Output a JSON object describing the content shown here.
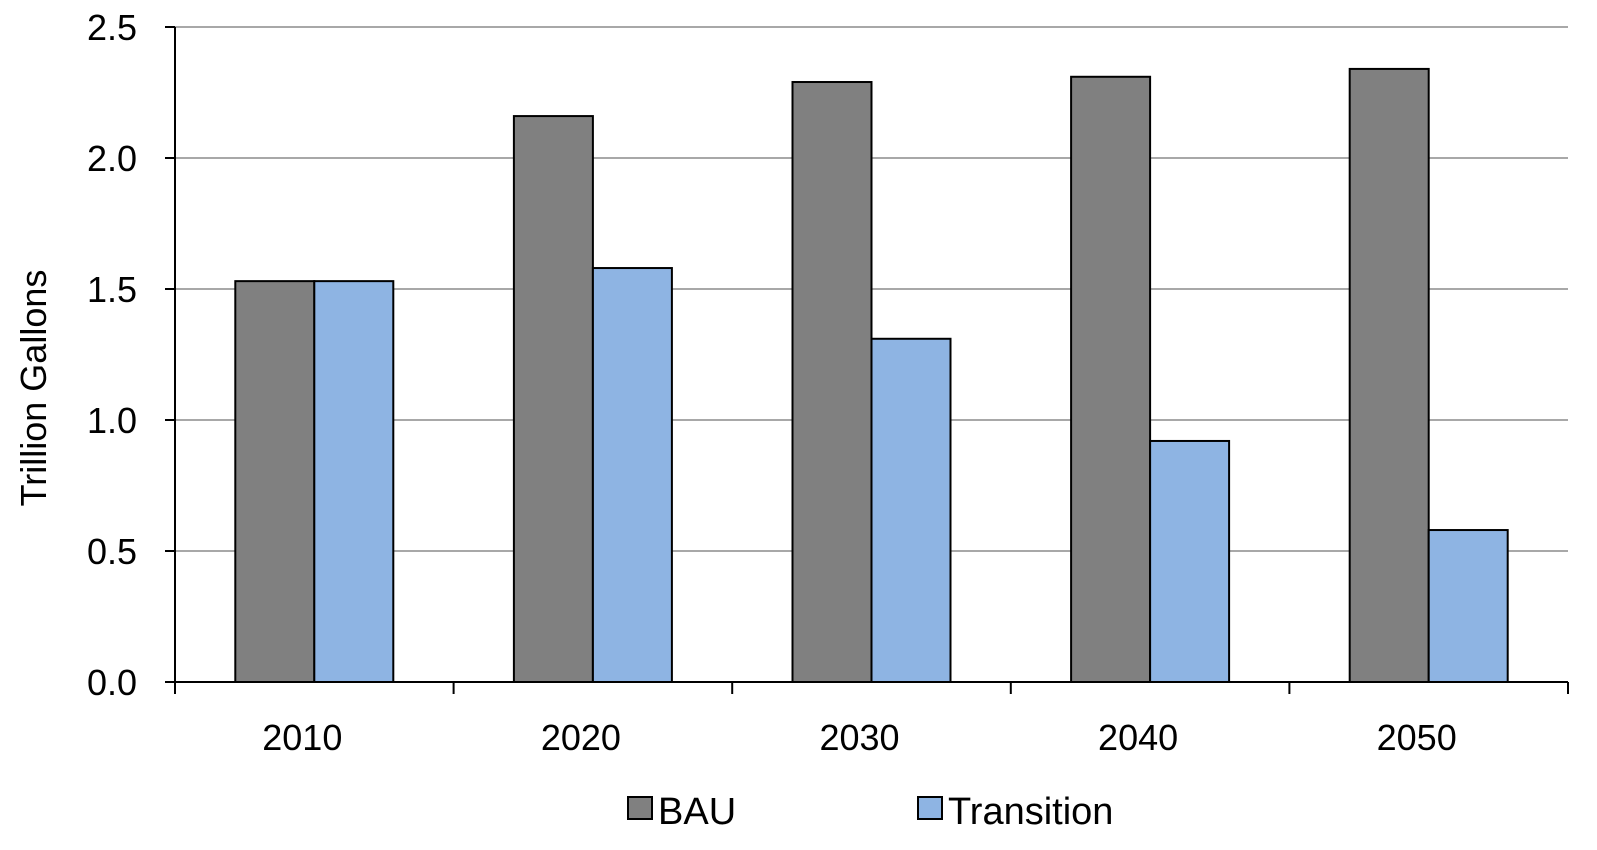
{
  "chart_data": {
    "type": "bar",
    "title": "",
    "xlabel": "",
    "ylabel": "Trillion Gallons",
    "categories": [
      "2010",
      "2020",
      "2030",
      "2040",
      "2050"
    ],
    "series": [
      {
        "name": "BAU",
        "values": [
          1.53,
          2.16,
          2.29,
          2.31,
          2.34
        ],
        "color": "#808080"
      },
      {
        "name": "Transition",
        "values": [
          1.53,
          1.58,
          1.31,
          0.92,
          0.58
        ],
        "color": "#8eb4e3"
      }
    ],
    "ylim": [
      0,
      2.5
    ],
    "yticks": [
      "0.0",
      "0.5",
      "1.0",
      "1.5",
      "2.0",
      "2.5"
    ],
    "grid": true,
    "legend": "bottom"
  }
}
